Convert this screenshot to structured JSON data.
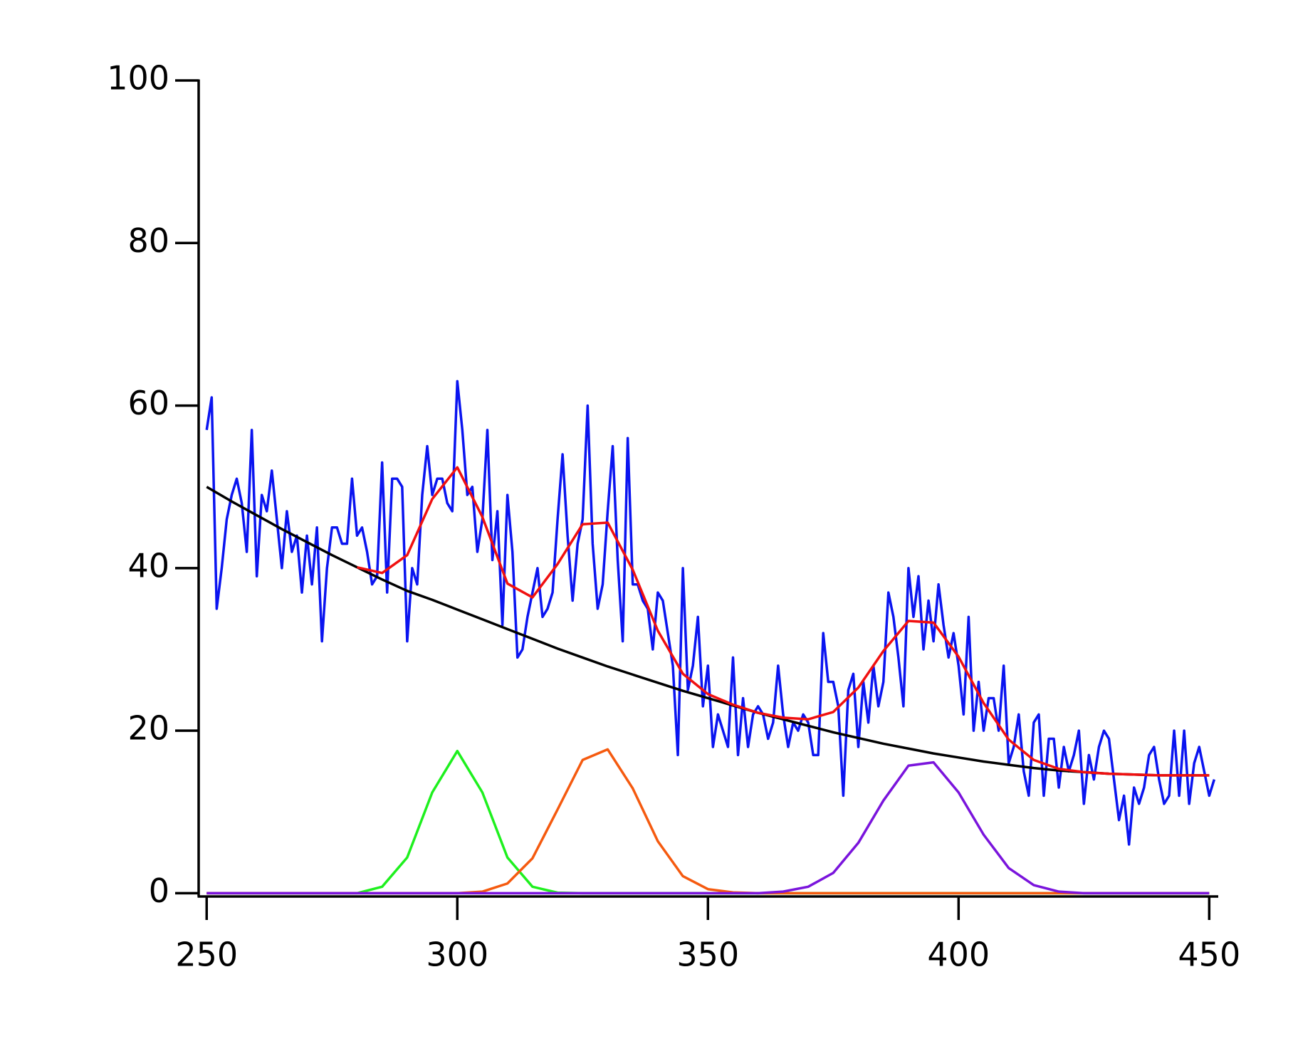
{
  "chart_data": {
    "type": "line",
    "xlim": [
      248.4,
      451.8
    ],
    "ylim": [
      -0.4,
      100
    ],
    "xticks": [
      250,
      300,
      350,
      400,
      450
    ],
    "yticks": [
      0,
      20,
      40,
      60,
      80,
      100
    ],
    "series": [
      {
        "color": "#0a14f0",
        "x": [
          250,
          251,
          252,
          253,
          254,
          255,
          256,
          257,
          258,
          259,
          260,
          261,
          262,
          263,
          264,
          265,
          266,
          267,
          268,
          269,
          270,
          271,
          272,
          273,
          274,
          275,
          276,
          277,
          278,
          279,
          280,
          281,
          282,
          283,
          284,
          285,
          286,
          287,
          288,
          289,
          290,
          291,
          292,
          293,
          294,
          295,
          296,
          297,
          298,
          299,
          300,
          301,
          302,
          303,
          304,
          305,
          306,
          307,
          308,
          309,
          310,
          311,
          312,
          313,
          314,
          315,
          316,
          317,
          318,
          319,
          320,
          321,
          322,
          323,
          324,
          325,
          326,
          327,
          328,
          329,
          330,
          331,
          332,
          333,
          334,
          335,
          336,
          337,
          338,
          339,
          340,
          341,
          342,
          343,
          344,
          345,
          346,
          347,
          348,
          349,
          350,
          351,
          352,
          353,
          354,
          355,
          356,
          357,
          358,
          359,
          360,
          361,
          362,
          363,
          364,
          365,
          366,
          367,
          368,
          369,
          370,
          371,
          372,
          373,
          374,
          375,
          376,
          377,
          378,
          379,
          380,
          381,
          382,
          383,
          384,
          385,
          386,
          387,
          388,
          389,
          390,
          391,
          392,
          393,
          394,
          395,
          396,
          397,
          398,
          399,
          400,
          401,
          402,
          403,
          404,
          405,
          406,
          407,
          408,
          409,
          410,
          411,
          412,
          413,
          414,
          415,
          416,
          417,
          418,
          419,
          420,
          421,
          422,
          423,
          424,
          425,
          426,
          427,
          428,
          429,
          430,
          431,
          432,
          433,
          434,
          435,
          436,
          437,
          438,
          439,
          440,
          441,
          442,
          443,
          444,
          445,
          446,
          447,
          448,
          449,
          450,
          451
        ],
        "values": [
          57,
          61,
          35,
          40,
          46,
          49,
          51,
          48,
          42,
          57,
          39,
          49,
          47,
          52,
          46,
          40,
          47,
          42,
          44,
          37,
          44,
          38,
          45,
          31,
          40,
          45,
          45,
          43,
          43,
          51,
          44,
          45,
          42,
          38,
          39,
          53,
          37,
          51,
          51,
          50,
          31,
          40,
          38,
          49,
          55,
          49,
          51,
          51,
          48,
          47,
          63,
          57,
          49,
          50,
          42,
          46,
          57,
          41,
          47,
          33,
          49,
          42,
          29,
          30,
          34,
          37,
          40,
          34,
          35,
          37,
          46,
          54,
          44,
          36,
          43,
          46,
          60,
          43,
          35,
          38,
          47,
          55,
          41,
          31,
          56,
          38,
          38,
          36,
          35,
          30,
          37,
          36,
          32,
          28,
          17,
          40,
          25,
          28,
          34,
          23,
          28,
          18,
          22,
          20,
          18,
          29,
          17,
          24,
          18,
          22,
          23,
          22,
          19,
          21,
          28,
          22,
          18,
          21,
          20,
          22,
          21,
          17,
          17,
          32,
          26,
          26,
          23,
          12,
          25,
          27,
          18,
          26,
          21,
          28,
          23,
          26,
          37,
          34,
          29,
          23,
          40,
          34,
          39,
          30,
          36,
          31,
          38,
          33,
          29,
          32,
          28,
          22,
          34,
          20,
          26,
          20,
          24,
          24,
          20,
          28,
          16,
          18,
          22,
          15,
          12,
          21,
          22,
          12,
          19,
          19,
          13,
          18,
          15,
          17,
          20,
          11,
          17,
          14,
          18,
          20,
          19,
          14,
          9,
          12,
          6,
          13,
          11,
          13,
          17,
          18,
          14,
          11,
          12,
          20,
          12,
          20,
          11,
          16,
          18,
          15,
          12,
          14
        ]
      },
      {
        "color": "#000000",
        "x": [
          250,
          255,
          260,
          265,
          270,
          275,
          280,
          285,
          290,
          295,
          300,
          305,
          310,
          315,
          320,
          325,
          330,
          335,
          340,
          345,
          350,
          355,
          360,
          365,
          370,
          375,
          380,
          385,
          390,
          395,
          400,
          405,
          410,
          415,
          420,
          425,
          430,
          435,
          440,
          445,
          450
        ],
        "values": [
          50,
          48.2,
          46.5,
          44.8,
          43.2,
          41.6,
          40.1,
          38.6,
          37.2,
          36.1,
          34.9,
          33.7,
          32.5,
          31.3,
          30.1,
          29.0,
          27.9,
          26.9,
          25.9,
          24.9,
          24.0,
          23.1,
          22.2,
          21.4,
          20.6,
          19.8,
          19.1,
          18.4,
          17.8,
          17.2,
          16.7,
          16.2,
          15.8,
          15.4,
          15.1,
          14.9,
          14.7,
          14.6,
          14.5,
          14.5,
          14.5
        ]
      },
      {
        "color": "#f01010",
        "x": [
          280,
          285,
          290,
          295,
          300,
          305,
          310,
          315,
          320,
          325,
          330,
          335,
          340,
          345,
          350,
          355,
          360,
          365,
          370,
          375,
          380,
          385,
          390,
          395,
          400,
          405,
          410,
          415,
          420,
          425,
          430,
          435,
          440,
          445,
          450
        ],
        "values": [
          40.1,
          39.4,
          41.6,
          48.5,
          52.4,
          46.3,
          38.1,
          36.4,
          40.5,
          45.4,
          45.6,
          39.8,
          32.3,
          27.0,
          24.5,
          23.2,
          22.2,
          21.6,
          21.4,
          22.3,
          25.3,
          29.8,
          33.5,
          33.3,
          29.1,
          23.4,
          18.9,
          16.4,
          15.3,
          14.9,
          14.7,
          14.6,
          14.5,
          14.5,
          14.5
        ]
      },
      {
        "color": "#1ef01e",
        "x": [
          250,
          255,
          260,
          265,
          270,
          275,
          280,
          285,
          290,
          295,
          300,
          305,
          310,
          315,
          320,
          325,
          330,
          335,
          340,
          345,
          350,
          355,
          360,
          365,
          370,
          375,
          380,
          385,
          390,
          395,
          400,
          405,
          410,
          415,
          420,
          425,
          430,
          435,
          440,
          445,
          450
        ],
        "values": [
          0,
          0,
          0,
          0,
          0,
          0,
          0,
          0.8,
          4.4,
          12.4,
          17.5,
          12.4,
          4.4,
          0.8,
          0.07,
          0,
          0,
          0,
          0,
          0,
          0,
          0,
          0,
          0,
          0,
          0,
          0,
          0,
          0,
          0,
          0,
          0,
          0,
          0,
          0,
          0,
          0,
          0,
          0,
          0,
          0
        ]
      },
      {
        "color": "#f55a0f",
        "x": [
          250,
          255,
          260,
          265,
          270,
          275,
          280,
          285,
          290,
          295,
          300,
          305,
          310,
          315,
          320,
          325,
          330,
          335,
          340,
          345,
          350,
          355,
          360,
          365,
          370,
          375,
          380,
          385,
          390,
          395,
          400,
          405,
          410,
          415,
          420,
          425,
          430,
          435,
          440,
          445,
          450
        ],
        "values": [
          0,
          0,
          0,
          0,
          0,
          0,
          0,
          0,
          0,
          0,
          0,
          0.2,
          1.2,
          4.3,
          10.3,
          16.4,
          17.7,
          12.9,
          6.4,
          2.1,
          0.5,
          0.1,
          0,
          0,
          0,
          0,
          0,
          0,
          0,
          0,
          0,
          0,
          0,
          0,
          0,
          0,
          0,
          0,
          0,
          0,
          0
        ]
      },
      {
        "color": "#7a14dc",
        "x": [
          250,
          255,
          260,
          265,
          270,
          275,
          280,
          285,
          290,
          295,
          300,
          305,
          310,
          315,
          320,
          325,
          330,
          335,
          340,
          345,
          350,
          355,
          360,
          365,
          370,
          375,
          380,
          385,
          390,
          395,
          400,
          405,
          410,
          415,
          420,
          425,
          430,
          435,
          440,
          445,
          450
        ],
        "values": [
          0,
          0,
          0,
          0,
          0,
          0,
          0,
          0,
          0,
          0,
          0,
          0,
          0,
          0,
          0,
          0,
          0,
          0,
          0,
          0,
          0,
          0,
          0,
          0.2,
          0.8,
          2.5,
          6.2,
          11.4,
          15.7,
          16.1,
          12.4,
          7.2,
          3.1,
          1.0,
          0.2,
          0,
          0,
          0,
          0,
          0,
          0
        ]
      }
    ]
  }
}
